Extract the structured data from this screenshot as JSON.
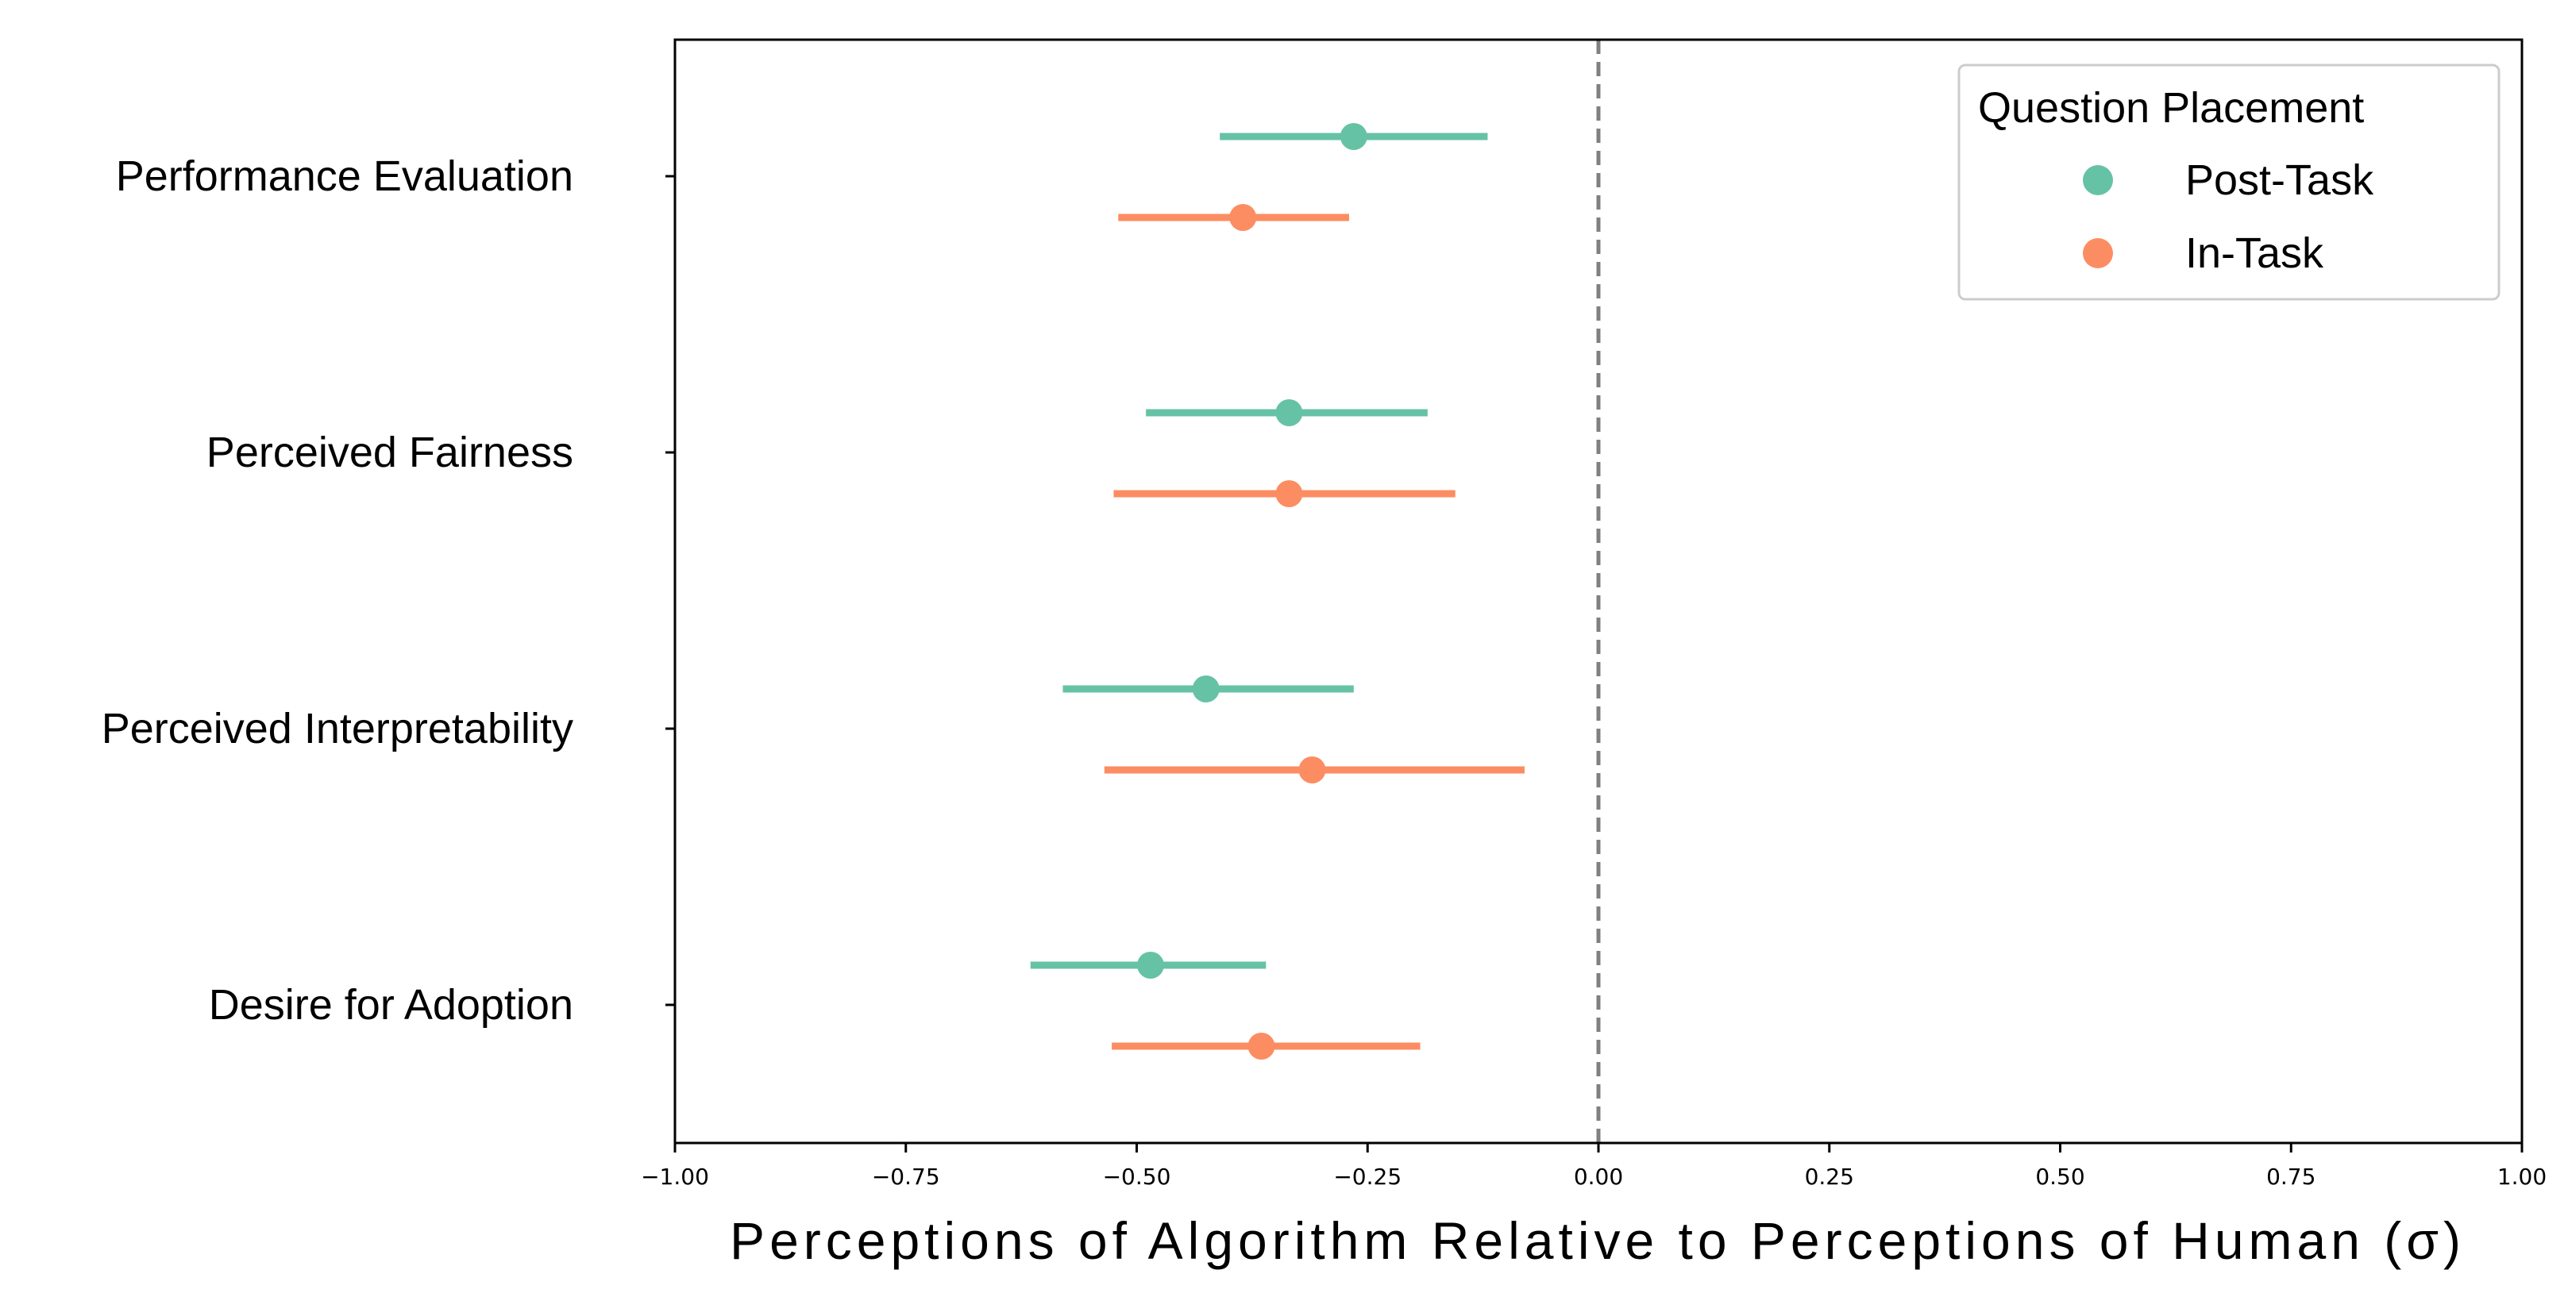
{
  "chart_data": {
    "type": "scatter",
    "title": "",
    "xlabel": "Perceptions of Algorithm Relative to Perceptions of Human (σ)",
    "ylabel": "",
    "xlim": [
      -1.0,
      1.0
    ],
    "xticks": [
      -1.0,
      -0.75,
      -0.5,
      -0.25,
      0.0,
      0.25,
      0.5,
      0.75,
      1.0
    ],
    "xtick_labels": [
      "−1.00",
      "−0.75",
      "−0.50",
      "−0.25",
      "0.00",
      "0.25",
      "0.50",
      "0.75",
      "1.00"
    ],
    "categories": [
      "Performance Evaluation",
      "Perceived Fairness",
      "Perceived Interpretability",
      "Desire for Adoption"
    ],
    "reference_line": {
      "x": 0.0,
      "style": "dashed",
      "color": "#808080"
    },
    "grid": false,
    "legend": {
      "title": "Question Placement",
      "placement": "top-right"
    },
    "series": [
      {
        "name": "Post-Task",
        "color": "#66c2a5",
        "points": [
          {
            "category": "Performance Evaluation",
            "value": -0.265,
            "ci_low": -0.41,
            "ci_high": -0.12
          },
          {
            "category": "Perceived Fairness",
            "value": -0.335,
            "ci_low": -0.49,
            "ci_high": -0.185
          },
          {
            "category": "Perceived Interpretability",
            "value": -0.425,
            "ci_low": -0.58,
            "ci_high": -0.265
          },
          {
            "category": "Desire for Adoption",
            "value": -0.485,
            "ci_low": -0.615,
            "ci_high": -0.36
          }
        ]
      },
      {
        "name": "In-Task",
        "color": "#fc8d62",
        "points": [
          {
            "category": "Performance Evaluation",
            "value": -0.385,
            "ci_low": -0.52,
            "ci_high": -0.27
          },
          {
            "category": "Perceived Fairness",
            "value": -0.335,
            "ci_low": -0.525,
            "ci_high": -0.155
          },
          {
            "category": "Perceived Interpretability",
            "value": -0.31,
            "ci_low": -0.535,
            "ci_high": -0.08
          },
          {
            "category": "Desire for Adoption",
            "value": -0.365,
            "ci_low": -0.527,
            "ci_high": -0.193
          }
        ]
      }
    ]
  }
}
